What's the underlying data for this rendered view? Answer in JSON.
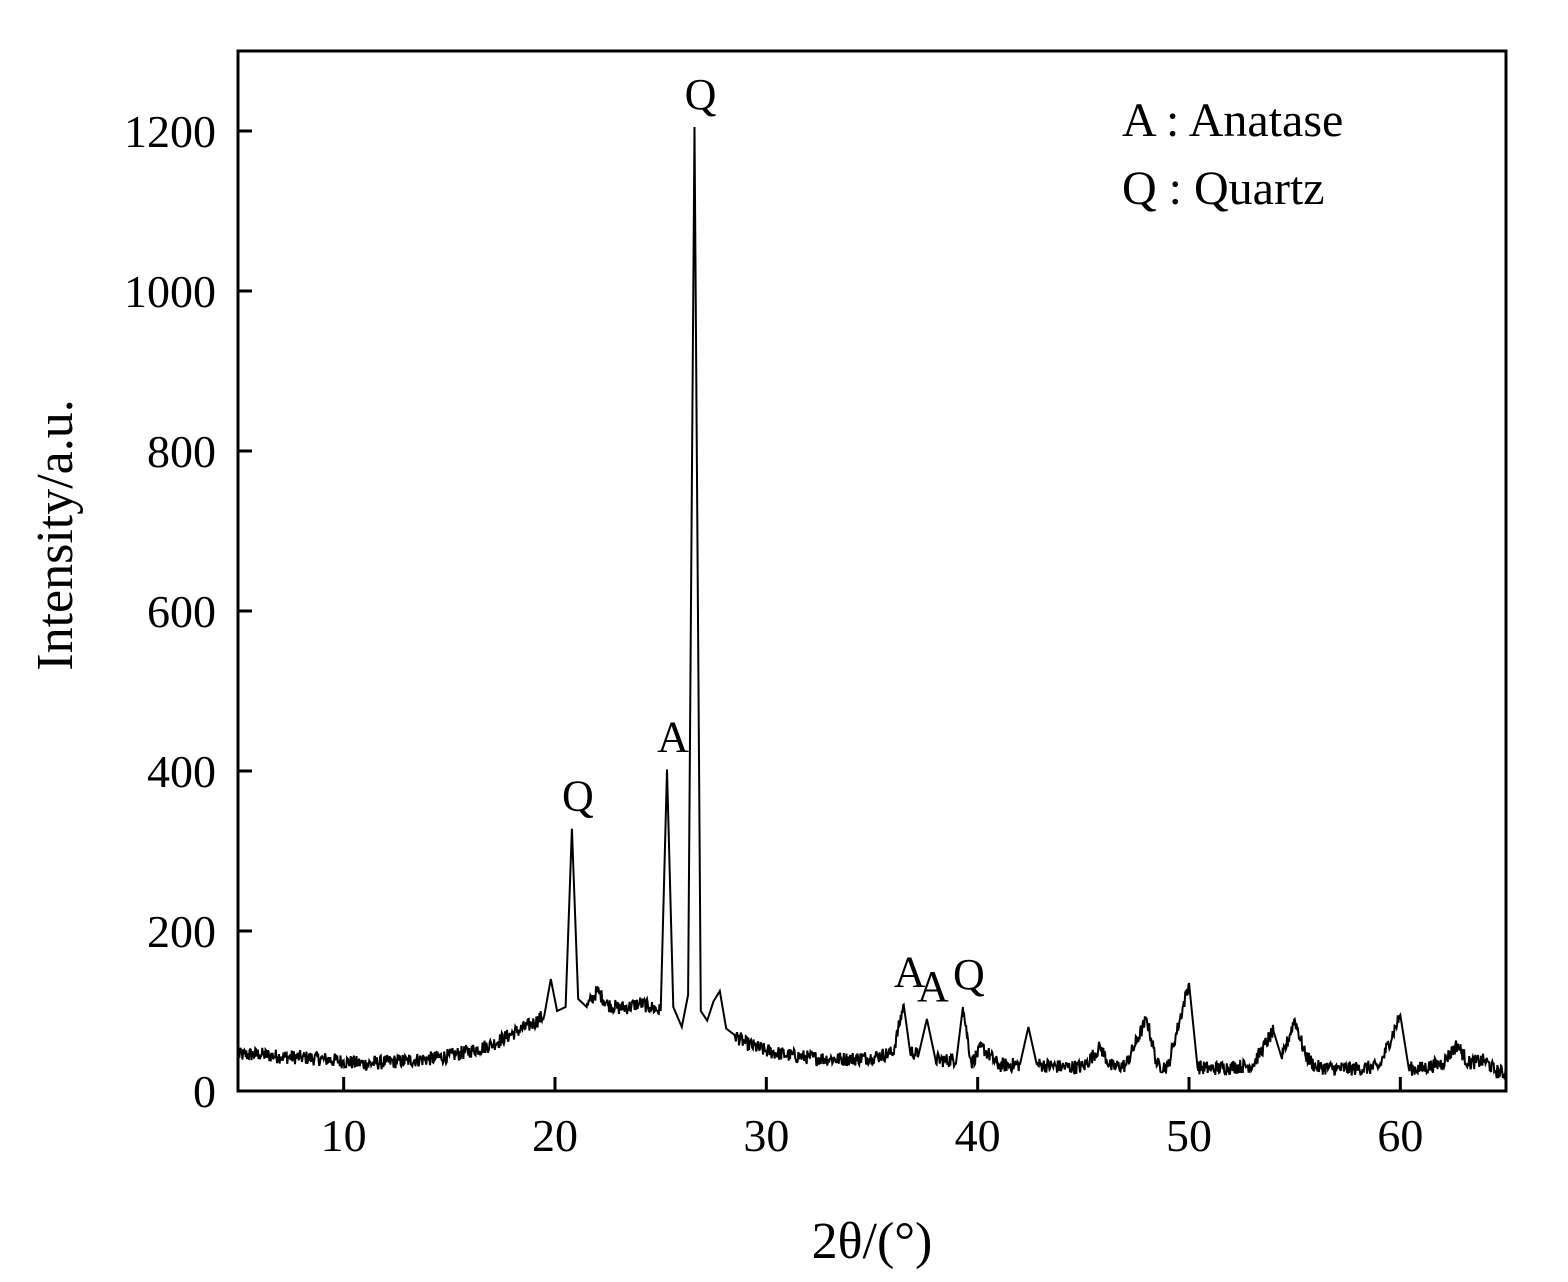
{
  "chart_data": {
    "type": "line",
    "title": "",
    "xlabel": "2θ/(°)",
    "ylabel": "Intensity/a.u.",
    "xlim": [
      5,
      65
    ],
    "ylim": [
      0,
      1300
    ],
    "xticks": [
      10,
      20,
      30,
      40,
      50,
      60
    ],
    "yticks": [
      0,
      200,
      400,
      600,
      800,
      1000,
      1200
    ],
    "grid": false,
    "legend_position": "top-right",
    "legend": [
      "A : Anatase",
      "Q : Quartz"
    ],
    "line_color": "#000000",
    "series": [
      {
        "points": [
          [
            5,
            45
          ],
          [
            6,
            46
          ],
          [
            7,
            43
          ],
          [
            8,
            42
          ],
          [
            9,
            40
          ],
          [
            10,
            37
          ],
          [
            11,
            34
          ],
          [
            12,
            36
          ],
          [
            13,
            38
          ],
          [
            14,
            40
          ],
          [
            15,
            44
          ],
          [
            16,
            50
          ],
          [
            17,
            58
          ],
          [
            18,
            72
          ],
          [
            19,
            85
          ],
          [
            19.5,
            95
          ],
          [
            19.8,
            140
          ],
          [
            20.1,
            100
          ],
          [
            20.5,
            105
          ],
          [
            20.8,
            328
          ],
          [
            21.1,
            115
          ],
          [
            21.5,
            105
          ],
          [
            22,
            125
          ],
          [
            22.5,
            108
          ],
          [
            23,
            104
          ],
          [
            23.5,
            105
          ],
          [
            24,
            110
          ],
          [
            24.5,
            105
          ],
          [
            25,
            100
          ],
          [
            25.3,
            402
          ],
          [
            25.6,
            105
          ],
          [
            26,
            80
          ],
          [
            26.3,
            120
          ],
          [
            26.6,
            1205
          ],
          [
            26.9,
            100
          ],
          [
            27.2,
            88
          ],
          [
            27.5,
            112
          ],
          [
            27.8,
            125
          ],
          [
            28.1,
            78
          ],
          [
            28.5,
            70
          ],
          [
            29,
            60
          ],
          [
            30,
            50
          ],
          [
            31,
            45
          ],
          [
            32,
            42
          ],
          [
            33,
            40
          ],
          [
            34,
            40
          ],
          [
            35,
            42
          ],
          [
            36,
            48
          ],
          [
            36.5,
            108
          ],
          [
            36.8,
            50
          ],
          [
            37.2,
            45
          ],
          [
            37.6,
            90
          ],
          [
            38,
            40
          ],
          [
            38.5,
            38
          ],
          [
            39,
            40
          ],
          [
            39.3,
            105
          ],
          [
            39.7,
            35
          ],
          [
            40.2,
            55
          ],
          [
            41,
            32
          ],
          [
            42,
            33
          ],
          [
            42.4,
            80
          ],
          [
            42.8,
            33
          ],
          [
            44,
            30
          ],
          [
            45,
            30
          ],
          [
            45.8,
            55
          ],
          [
            46.3,
            30
          ],
          [
            47,
            32
          ],
          [
            48,
            90
          ],
          [
            48.5,
            32
          ],
          [
            49,
            30
          ],
          [
            50,
            135
          ],
          [
            50.4,
            30
          ],
          [
            51,
            28
          ],
          [
            52,
            30
          ],
          [
            53,
            32
          ],
          [
            54,
            75
          ],
          [
            54.4,
            40
          ],
          [
            55,
            90
          ],
          [
            55.5,
            45
          ],
          [
            56,
            30
          ],
          [
            57,
            28
          ],
          [
            58,
            28
          ],
          [
            59,
            30
          ],
          [
            60,
            95
          ],
          [
            60.4,
            28
          ],
          [
            61,
            28
          ],
          [
            62,
            35
          ],
          [
            62.7,
            58
          ],
          [
            63.2,
            35
          ],
          [
            64,
            38
          ],
          [
            64.5,
            25
          ],
          [
            65,
            22
          ]
        ]
      }
    ],
    "annotations": [
      {
        "text": "Q",
        "x": 20.8,
        "y": 328
      },
      {
        "text": "A",
        "x": 25.3,
        "y": 402
      },
      {
        "text": "Q",
        "x": 26.6,
        "y": 1205
      },
      {
        "text": "A",
        "x": 36.5,
        "y": 108
      },
      {
        "text": "A",
        "x": 37.6,
        "y": 90
      },
      {
        "text": "Q",
        "x": 39.3,
        "y": 105
      }
    ]
  }
}
